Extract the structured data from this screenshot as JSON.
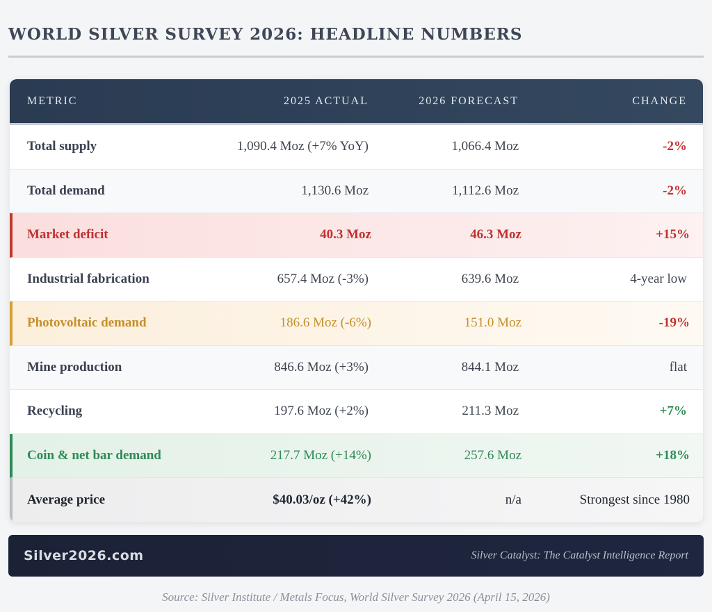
{
  "title": "WORLD SILVER SURVEY 2026: HEADLINE NUMBERS",
  "table": {
    "headers": [
      "METRIC",
      "2025 ACTUAL",
      "2026 FORECAST",
      "CHANGE"
    ],
    "rows": [
      {
        "metric": "Total supply",
        "actual": "1,090.4 Moz (+7% YoY)",
        "forecast": "1,066.4 Moz",
        "change": "-2%"
      },
      {
        "metric": "Total demand",
        "actual": "1,130.6 Moz",
        "forecast": "1,112.6 Moz",
        "change": "-2%"
      },
      {
        "metric": "Market deficit",
        "actual": "40.3 Moz",
        "forecast": "46.3 Moz",
        "change": "+15%"
      },
      {
        "metric": "Industrial fabrication",
        "actual": "657.4 Moz (-3%)",
        "forecast": "639.6 Moz",
        "change": "4-year low"
      },
      {
        "metric": "Photovoltaic demand",
        "actual": "186.6 Moz (-6%)",
        "forecast": "151.0 Moz",
        "change": "-19%"
      },
      {
        "metric": "Mine production",
        "actual": "846.6 Moz (+3%)",
        "forecast": "844.1 Moz",
        "change": "flat"
      },
      {
        "metric": "Recycling",
        "actual": "197.6 Moz (+2%)",
        "forecast": "211.3 Moz",
        "change": "+7%"
      },
      {
        "metric": "Coin & net bar demand",
        "actual": "217.7 Moz (+14%)",
        "forecast": "257.6 Moz",
        "change": "+18%"
      },
      {
        "metric": "Average price",
        "actual": "$40.03/oz (+42%)",
        "forecast": "n/a",
        "change": "Strongest since 1980"
      }
    ]
  },
  "footer": {
    "brand": "Silver2026.com",
    "tagline": "Silver Catalyst: The Catalyst Intelligence Report"
  },
  "source": "Source: Silver Institute / Metals Focus, World Silver Survey 2026 (April 15, 2026)",
  "colors": {
    "header_bg": "#2a3b52",
    "negative": "#c03131",
    "positive": "#2e8a55",
    "highlight_red": "#c0392b",
    "highlight_gold": "#d4a03a",
    "highlight_green": "#2e8b57",
    "footer_bg": "#1c2236"
  }
}
